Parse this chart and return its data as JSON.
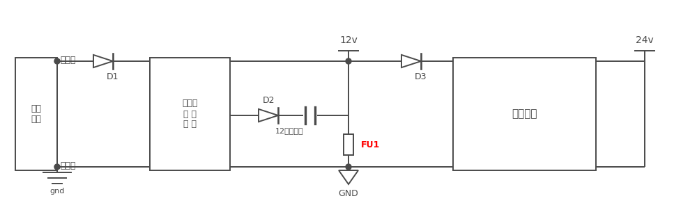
{
  "bg_color": "#ffffff",
  "line_color": "#4a4a4a",
  "line_width": 1.4,
  "figsize": [
    10.0,
    3.15
  ],
  "dpi": 100,
  "font_size_label": 9,
  "font_size_box": 9,
  "font_size_voltage": 10,
  "labels": {
    "guangfu_plus": "光伏＋",
    "guangfu_minus": "光伏－",
    "guangfu_box": "光伏\n阵列",
    "charge_box": "充放电\n管 理\n模 块",
    "boost_box": "升压模块",
    "D1": "D1",
    "D2": "D2",
    "D3": "D3",
    "FU1": "FU1",
    "gnd": "gnd",
    "GND": "GND",
    "v12": "12v",
    "v24": "24v",
    "battery": "12ｖ蓄电池"
  }
}
